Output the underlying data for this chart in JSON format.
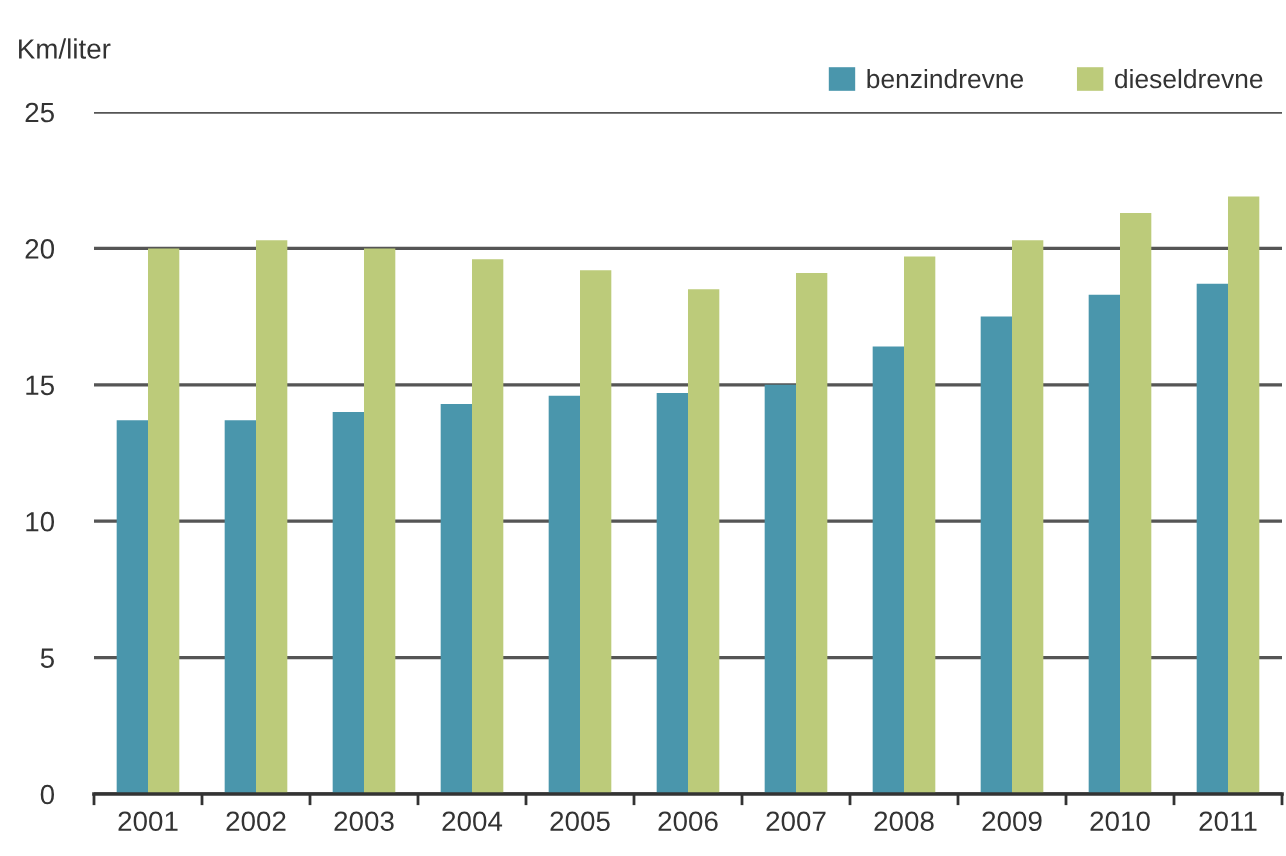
{
  "chart_data": {
    "type": "bar",
    "ylabel": "Km/liter",
    "categories": [
      "2001",
      "2002",
      "2003",
      "2004",
      "2005",
      "2006",
      "2007",
      "2008",
      "2009",
      "2010",
      "2011"
    ],
    "series": [
      {
        "name": "benzindrevne",
        "color": "#4a96ac",
        "values": [
          13.7,
          13.7,
          14.0,
          14.3,
          14.6,
          14.7,
          15.0,
          16.4,
          17.5,
          18.3,
          18.7
        ]
      },
      {
        "name": "dieseldrevne",
        "color": "#bccb7a",
        "values": [
          20.0,
          20.3,
          20.0,
          19.6,
          19.2,
          18.5,
          19.1,
          19.7,
          20.3,
          21.3,
          21.9
        ]
      }
    ],
    "ylim": [
      0,
      25
    ],
    "yticks": [
      0,
      5,
      10,
      15,
      20,
      25
    ],
    "grid": "y",
    "legend": "top right"
  }
}
